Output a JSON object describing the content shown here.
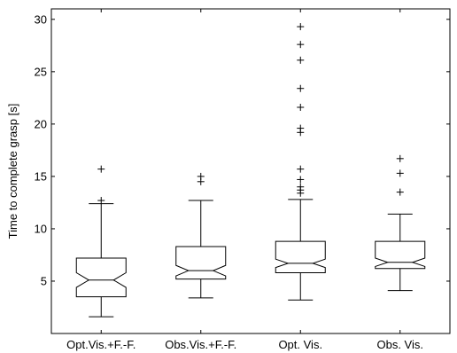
{
  "chart_data": {
    "type": "boxplot",
    "notched": true,
    "title": "",
    "xlabel": "",
    "ylabel": "Time to complete grasp [s]",
    "ylim": [
      0,
      31
    ],
    "yticks": [
      5,
      10,
      15,
      20,
      25,
      30
    ],
    "grid": false,
    "legend": "none",
    "colors": {
      "box": "#000000",
      "outlier": "#000000",
      "background": "#ffffff"
    },
    "categories": [
      "Opt.Vis.+F.-F.",
      "Obs.Vis.+F.-F.",
      "Opt. Vis.",
      "Obs. Vis."
    ],
    "boxes": [
      {
        "category": "Opt.Vis.+F.-F.",
        "whisker_low": 1.6,
        "q1": 3.5,
        "median": 5.1,
        "q3": 7.2,
        "whisker_high": 12.4,
        "notch_low": 4.4,
        "notch_high": 5.8,
        "outliers": [
          12.7,
          15.7
        ]
      },
      {
        "category": "Obs.Vis.+F.-F.",
        "whisker_low": 3.4,
        "q1": 5.2,
        "median": 6.0,
        "q3": 8.3,
        "whisker_high": 12.7,
        "notch_low": 5.5,
        "notch_high": 6.5,
        "outliers": [
          14.5,
          15.0
        ]
      },
      {
        "category": "Opt. Vis.",
        "whisker_low": 3.2,
        "q1": 5.8,
        "median": 6.7,
        "q3": 8.8,
        "whisker_high": 12.8,
        "notch_low": 6.3,
        "notch_high": 7.1,
        "outliers": [
          13.4,
          13.7,
          14.0,
          14.7,
          15.7,
          19.2,
          19.6,
          21.6,
          23.4,
          26.1,
          27.6,
          29.3
        ]
      },
      {
        "category": "Obs. Vis.",
        "whisker_low": 4.1,
        "q1": 6.2,
        "median": 6.8,
        "q3": 8.8,
        "whisker_high": 11.4,
        "notch_low": 6.4,
        "notch_high": 7.2,
        "outliers": [
          13.5,
          15.3,
          16.7
        ]
      }
    ]
  }
}
